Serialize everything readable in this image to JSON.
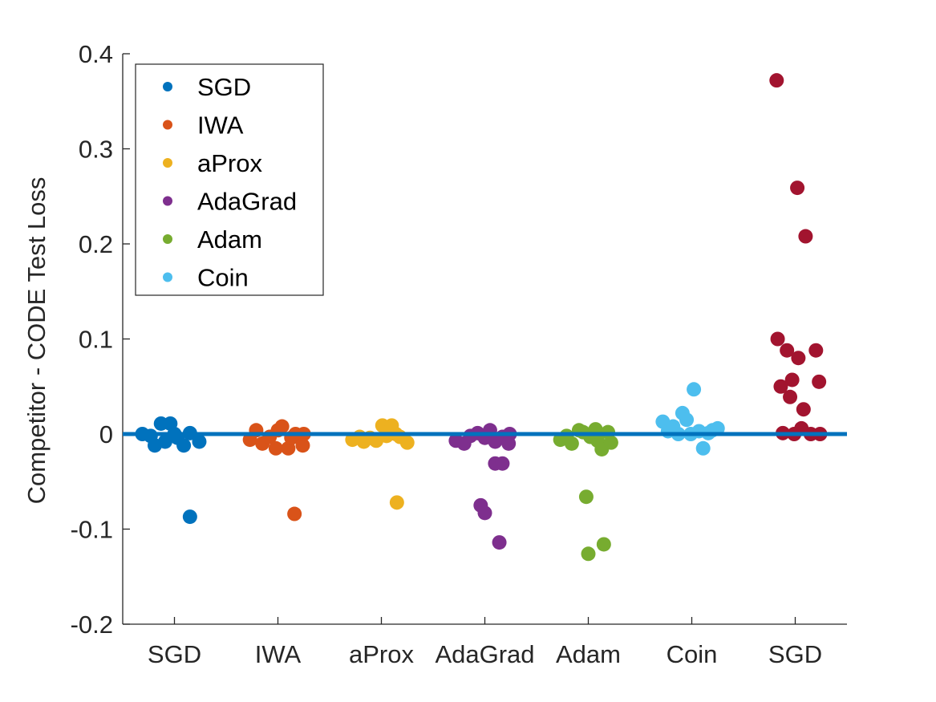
{
  "chart_data": {
    "type": "scatter",
    "title": "",
    "xlabel": "",
    "ylabel": "Competitor - CODE Test Loss",
    "ylim": [
      -0.2,
      0.4
    ],
    "yticks": [
      -0.2,
      -0.1,
      0,
      0.1,
      0.2,
      0.3,
      0.4
    ],
    "ytick_labels": [
      "-0.2",
      "-0.1",
      "0",
      "0.1",
      "0.2",
      "0.3",
      "0.4"
    ],
    "categories": [
      "SGD",
      "IWA",
      "aProx",
      "AdaGrad",
      "Adam",
      "Coin",
      "SGD"
    ],
    "reference_line": {
      "y": 0,
      "color": "#0072BD"
    },
    "legend": {
      "position": "top-left",
      "entries": [
        {
          "label": "SGD",
          "color": "#0072BD"
        },
        {
          "label": "IWA",
          "color": "#D95319"
        },
        {
          "label": "aProx",
          "color": "#EDB120"
        },
        {
          "label": "AdaGrad",
          "color": "#7E2F8E"
        },
        {
          "label": "Adam",
          "color": "#77AC30"
        },
        {
          "label": "Coin",
          "color": "#4DBEEE"
        }
      ]
    },
    "series": [
      {
        "name": "SGD",
        "color": "#0072BD",
        "category_index": 0,
        "points": [
          {
            "x": 0.69,
            "y": 0.0
          },
          {
            "x": 0.77,
            "y": -0.002
          },
          {
            "x": 0.81,
            "y": -0.012
          },
          {
            "x": 0.87,
            "y": 0.011
          },
          {
            "x": 0.91,
            "y": -0.008
          },
          {
            "x": 0.96,
            "y": 0.011
          },
          {
            "x": 1.0,
            "y": 0.0
          },
          {
            "x": 1.03,
            "y": -0.004
          },
          {
            "x": 1.09,
            "y": -0.012
          },
          {
            "x": 1.15,
            "y": 0.001
          },
          {
            "x": 1.24,
            "y": -0.008
          },
          {
            "x": 1.15,
            "y": -0.087
          }
        ]
      },
      {
        "name": "IWA",
        "color": "#D95319",
        "category_index": 1,
        "points": [
          {
            "x": 1.73,
            "y": -0.006
          },
          {
            "x": 1.79,
            "y": 0.004
          },
          {
            "x": 1.85,
            "y": -0.01
          },
          {
            "x": 1.92,
            "y": -0.003
          },
          {
            "x": 1.98,
            "y": -0.015
          },
          {
            "x": 2.0,
            "y": 0.004
          },
          {
            "x": 2.04,
            "y": 0.008
          },
          {
            "x": 2.1,
            "y": -0.015
          },
          {
            "x": 2.13,
            "y": -0.004
          },
          {
            "x": 2.17,
            "y": 0.0
          },
          {
            "x": 2.24,
            "y": -0.012
          },
          {
            "x": 2.25,
            "y": 0.0
          },
          {
            "x": 2.16,
            "y": -0.084
          }
        ]
      },
      {
        "name": "aProx",
        "color": "#EDB120",
        "category_index": 2,
        "points": [
          {
            "x": 2.72,
            "y": -0.006
          },
          {
            "x": 2.79,
            "y": -0.003
          },
          {
            "x": 2.83,
            "y": -0.008
          },
          {
            "x": 2.89,
            "y": -0.004
          },
          {
            "x": 2.95,
            "y": -0.007
          },
          {
            "x": 3.01,
            "y": 0.009
          },
          {
            "x": 3.05,
            "y": -0.002
          },
          {
            "x": 3.1,
            "y": 0.009
          },
          {
            "x": 3.14,
            "y": 0.0
          },
          {
            "x": 3.18,
            "y": -0.003
          },
          {
            "x": 3.25,
            "y": -0.009
          },
          {
            "x": 3.15,
            "y": -0.072
          }
        ]
      },
      {
        "name": "AdaGrad",
        "color": "#7E2F8E",
        "category_index": 3,
        "points": [
          {
            "x": 3.72,
            "y": -0.007
          },
          {
            "x": 3.8,
            "y": -0.01
          },
          {
            "x": 3.86,
            "y": -0.002
          },
          {
            "x": 3.93,
            "y": 0.001
          },
          {
            "x": 4.0,
            "y": -0.004
          },
          {
            "x": 4.05,
            "y": 0.004
          },
          {
            "x": 4.1,
            "y": -0.008
          },
          {
            "x": 4.17,
            "y": -0.003
          },
          {
            "x": 4.23,
            "y": -0.01
          },
          {
            "x": 4.24,
            "y": 0.0
          },
          {
            "x": 4.1,
            "y": -0.031
          },
          {
            "x": 4.17,
            "y": -0.031
          },
          {
            "x": 3.96,
            "y": -0.075
          },
          {
            "x": 4.0,
            "y": -0.083
          },
          {
            "x": 4.14,
            "y": -0.114
          }
        ]
      },
      {
        "name": "Adam",
        "color": "#77AC30",
        "category_index": 4,
        "points": [
          {
            "x": 4.73,
            "y": -0.006
          },
          {
            "x": 4.79,
            "y": -0.002
          },
          {
            "x": 4.84,
            "y": -0.01
          },
          {
            "x": 4.91,
            "y": 0.004
          },
          {
            "x": 4.95,
            "y": 0.002
          },
          {
            "x": 5.02,
            "y": -0.003
          },
          {
            "x": 5.07,
            "y": 0.005
          },
          {
            "x": 5.09,
            "y": -0.007
          },
          {
            "x": 5.13,
            "y": -0.016
          },
          {
            "x": 5.19,
            "y": 0.002
          },
          {
            "x": 5.22,
            "y": -0.009
          },
          {
            "x": 4.98,
            "y": -0.066
          },
          {
            "x": 5.15,
            "y": -0.116
          },
          {
            "x": 5.0,
            "y": -0.126
          }
        ]
      },
      {
        "name": "Coin",
        "color": "#4DBEEE",
        "category_index": 5,
        "points": [
          {
            "x": 5.72,
            "y": 0.013
          },
          {
            "x": 5.77,
            "y": 0.003
          },
          {
            "x": 5.82,
            "y": 0.008
          },
          {
            "x": 5.87,
            "y": 0.0
          },
          {
            "x": 5.91,
            "y": 0.022
          },
          {
            "x": 5.95,
            "y": 0.015
          },
          {
            "x": 5.99,
            "y": 0.0
          },
          {
            "x": 6.02,
            "y": 0.047
          },
          {
            "x": 6.07,
            "y": 0.003
          },
          {
            "x": 6.11,
            "y": -0.015
          },
          {
            "x": 6.16,
            "y": 0.001
          },
          {
            "x": 6.2,
            "y": 0.004
          },
          {
            "x": 6.25,
            "y": 0.006
          }
        ]
      },
      {
        "name": "SGD",
        "color": "#A2142F",
        "category_index": 6,
        "points": [
          {
            "x": 6.82,
            "y": 0.372
          },
          {
            "x": 6.83,
            "y": 0.1
          },
          {
            "x": 6.86,
            "y": 0.05
          },
          {
            "x": 6.88,
            "y": 0.001
          },
          {
            "x": 6.92,
            "y": 0.088
          },
          {
            "x": 6.95,
            "y": 0.039
          },
          {
            "x": 6.97,
            "y": 0.057
          },
          {
            "x": 6.99,
            "y": 0.0
          },
          {
            "x": 7.02,
            "y": 0.259
          },
          {
            "x": 7.03,
            "y": 0.08
          },
          {
            "x": 7.06,
            "y": 0.006
          },
          {
            "x": 7.08,
            "y": 0.026
          },
          {
            "x": 7.1,
            "y": 0.208
          },
          {
            "x": 7.15,
            "y": 0.0
          },
          {
            "x": 7.2,
            "y": 0.088
          },
          {
            "x": 7.23,
            "y": 0.055
          },
          {
            "x": 7.24,
            "y": 0.0
          }
        ]
      }
    ]
  }
}
